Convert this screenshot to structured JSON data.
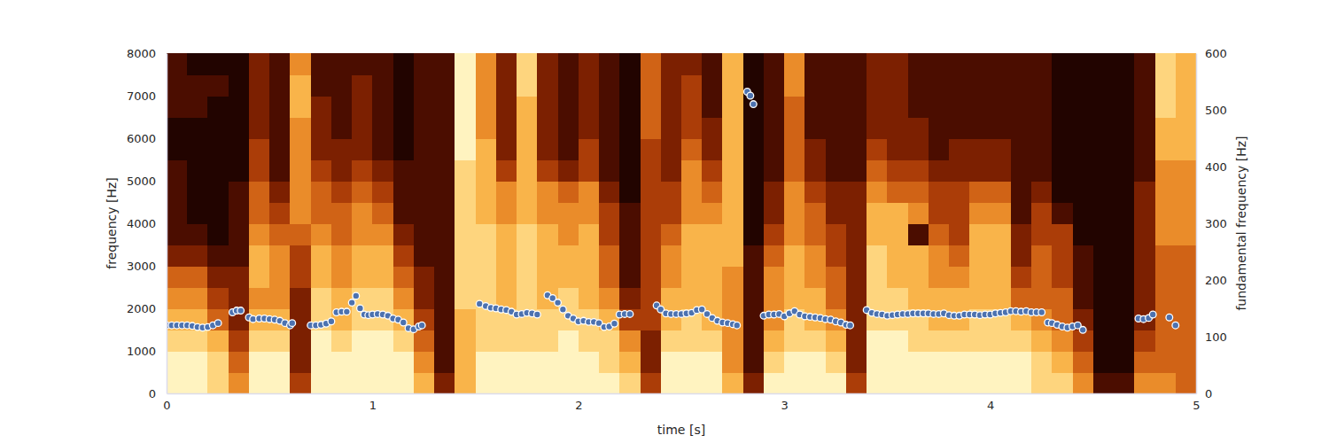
{
  "chart_data": {
    "type": "heatmap",
    "x_label": "time [s]",
    "y_label": "frequency [Hz]",
    "y2_label": "fundamental frequency [Hz]",
    "xlim": [
      0,
      5
    ],
    "xticks": [
      0,
      1,
      2,
      3,
      4,
      5
    ],
    "ylim": [
      0,
      8000
    ],
    "yticks": [
      0,
      1000,
      2000,
      3000,
      4000,
      5000,
      6000,
      7000,
      8000
    ],
    "y2lim": [
      0,
      600
    ],
    "y2ticks": [
      0,
      100,
      200,
      300,
      400,
      500,
      600
    ],
    "grid": false,
    "time_bins": [
      0,
      0.1,
      0.2,
      0.3,
      0.4,
      0.5,
      0.6,
      0.7,
      0.8,
      0.9,
      1,
      1.1,
      1.2,
      1.3,
      1.4,
      1.5,
      1.6,
      1.7,
      1.8,
      1.9,
      2,
      2.1,
      2.2,
      2.3,
      2.4,
      2.5,
      2.6,
      2.7,
      2.8,
      2.9,
      3,
      3.1,
      3.2,
      3.3,
      3.4,
      3.5,
      3.6,
      3.7,
      3.8,
      3.9,
      4,
      4.1,
      4.2,
      4.3,
      4.4,
      4.5,
      4.6,
      4.7,
      4.8,
      4.9,
      5
    ],
    "freq_bins": [
      0,
      500,
      1000,
      1500,
      2000,
      2500,
      3000,
      3500,
      4000,
      4500,
      5000,
      5500,
      6000,
      6500,
      7000,
      7500,
      8000
    ],
    "zlim": [
      0,
      9
    ],
    "z": [
      [
        9,
        9,
        8,
        7,
        6,
        5,
        3,
        2,
        2,
        2,
        2,
        1,
        1,
        2,
        2,
        2
      ],
      [
        9,
        9,
        8,
        7,
        6,
        5,
        3,
        2,
        1,
        1,
        1,
        1,
        1,
        2,
        2,
        1
      ],
      [
        8,
        8,
        7,
        5,
        4,
        3,
        2,
        1,
        1,
        1,
        1,
        1,
        1,
        1,
        2,
        1
      ],
      [
        6,
        5,
        4,
        3,
        3,
        3,
        2,
        2,
        2,
        2,
        1,
        1,
        1,
        1,
        1,
        1
      ],
      [
        9,
        9,
        8,
        7,
        6,
        7,
        7,
        6,
        5,
        5,
        4,
        4,
        3,
        3,
        3,
        3
      ],
      [
        9,
        9,
        8,
        7,
        6,
        6,
        6,
        5,
        4,
        3,
        2,
        2,
        2,
        2,
        2,
        2
      ],
      [
        4,
        3,
        3,
        3,
        3,
        4,
        4,
        5,
        6,
        6,
        6,
        6,
        6,
        7,
        7,
        6
      ],
      [
        9,
        9,
        9,
        8,
        8,
        7,
        7,
        6,
        5,
        5,
        4,
        3,
        3,
        3,
        2,
        2
      ],
      [
        9,
        9,
        8,
        7,
        7,
        6,
        6,
        5,
        5,
        4,
        3,
        3,
        2,
        2,
        2,
        2
      ],
      [
        9,
        9,
        9,
        8,
        8,
        7,
        7,
        6,
        6,
        5,
        4,
        3,
        3,
        3,
        3,
        2
      ],
      [
        9,
        9,
        9,
        8,
        8,
        7,
        7,
        6,
        5,
        4,
        3,
        2,
        2,
        2,
        2,
        2
      ],
      [
        9,
        9,
        8,
        7,
        6,
        5,
        4,
        3,
        2,
        2,
        2,
        1,
        1,
        1,
        1,
        1
      ],
      [
        7,
        6,
        5,
        4,
        3,
        3,
        2,
        2,
        2,
        2,
        2,
        2,
        2,
        2,
        2,
        2
      ],
      [
        3,
        2,
        2,
        2,
        2,
        2,
        2,
        2,
        2,
        2,
        2,
        2,
        2,
        2,
        2,
        2
      ],
      [
        7,
        7,
        7,
        7,
        8,
        8,
        8,
        8,
        8,
        8,
        8,
        9,
        9,
        9,
        9,
        9
      ],
      [
        9,
        9,
        8,
        8,
        8,
        8,
        8,
        8,
        7,
        7,
        7,
        7,
        6,
        6,
        6,
        6
      ],
      [
        9,
        9,
        8,
        8,
        7,
        7,
        7,
        7,
        6,
        6,
        4,
        3,
        3,
        3,
        3,
        3
      ],
      [
        9,
        9,
        8,
        8,
        8,
        8,
        8,
        8,
        7,
        7,
        7,
        7,
        7,
        7,
        8,
        8
      ],
      [
        9,
        9,
        8,
        8,
        7,
        7,
        7,
        7,
        6,
        6,
        4,
        3,
        3,
        3,
        3,
        3
      ],
      [
        9,
        9,
        9,
        8,
        8,
        7,
        7,
        6,
        6,
        5,
        3,
        2,
        2,
        2,
        2,
        2
      ],
      [
        9,
        9,
        8,
        8,
        7,
        7,
        7,
        7,
        6,
        6,
        4,
        4,
        3,
        3,
        3,
        3
      ],
      [
        9,
        8,
        8,
        7,
        6,
        5,
        5,
        4,
        4,
        3,
        2,
        2,
        2,
        2,
        2,
        2
      ],
      [
        8,
        7,
        6,
        4,
        3,
        2,
        2,
        2,
        2,
        1,
        1,
        1,
        1,
        1,
        1,
        1
      ],
      [
        4,
        3,
        3,
        4,
        4,
        4,
        4,
        4,
        4,
        4,
        4,
        4,
        5,
        5,
        5,
        5
      ],
      [
        9,
        9,
        8,
        7,
        7,
        6,
        6,
        5,
        4,
        4,
        3,
        3,
        3,
        3,
        3,
        3
      ],
      [
        9,
        9,
        8,
        8,
        7,
        7,
        7,
        7,
        6,
        6,
        6,
        5,
        4,
        4,
        4,
        3
      ],
      [
        9,
        9,
        8,
        7,
        7,
        7,
        7,
        7,
        6,
        5,
        4,
        3,
        3,
        2,
        2,
        2
      ],
      [
        7,
        6,
        6,
        6,
        6,
        6,
        7,
        7,
        7,
        7,
        7,
        7,
        7,
        7,
        7,
        7
      ],
      [
        3,
        2,
        2,
        2,
        2,
        2,
        2,
        1,
        1,
        1,
        1,
        1,
        1,
        1,
        1,
        1
      ],
      [
        9,
        8,
        7,
        6,
        6,
        6,
        5,
        4,
        3,
        3,
        2,
        2,
        2,
        2,
        2,
        2
      ],
      [
        9,
        9,
        8,
        8,
        7,
        7,
        7,
        6,
        6,
        6,
        5,
        5,
        5,
        5,
        6,
        6
      ],
      [
        9,
        9,
        8,
        7,
        7,
        6,
        6,
        5,
        5,
        4,
        3,
        3,
        2,
        2,
        2,
        2
      ],
      [
        9,
        8,
        7,
        6,
        5,
        5,
        4,
        4,
        3,
        3,
        2,
        2,
        2,
        2,
        2,
        2
      ],
      [
        4,
        3,
        3,
        3,
        3,
        3,
        3,
        3,
        3,
        3,
        2,
        2,
        2,
        2,
        2,
        2
      ],
      [
        9,
        9,
        9,
        8,
        8,
        8,
        8,
        7,
        7,
        6,
        5,
        4,
        3,
        3,
        3,
        3
      ],
      [
        9,
        9,
        9,
        8,
        8,
        7,
        7,
        7,
        7,
        5,
        4,
        3,
        3,
        3,
        3,
        3
      ],
      [
        9,
        9,
        8,
        8,
        7,
        7,
        7,
        2,
        6,
        5,
        4,
        3,
        3,
        2,
        2,
        2
      ],
      [
        9,
        9,
        8,
        7,
        7,
        6,
        6,
        5,
        4,
        4,
        3,
        2,
        2,
        2,
        2,
        2
      ],
      [
        9,
        9,
        8,
        7,
        7,
        6,
        5,
        4,
        4,
        4,
        3,
        3,
        2,
        2,
        2,
        2
      ],
      [
        9,
        9,
        8,
        8,
        7,
        7,
        7,
        7,
        6,
        5,
        3,
        3,
        2,
        2,
        2,
        2
      ],
      [
        9,
        9,
        8,
        8,
        7,
        7,
        7,
        7,
        6,
        5,
        3,
        3,
        2,
        2,
        2,
        2
      ],
      [
        9,
        9,
        8,
        7,
        5,
        4,
        3,
        3,
        2,
        2,
        2,
        2,
        2,
        2,
        2,
        2
      ],
      [
        8,
        8,
        7,
        6,
        5,
        5,
        5,
        4,
        4,
        3,
        2,
        2,
        2,
        2,
        2,
        2
      ],
      [
        8,
        7,
        6,
        5,
        5,
        4,
        4,
        4,
        2,
        1,
        1,
        1,
        1,
        1,
        1,
        1
      ],
      [
        6,
        5,
        4,
        3,
        2,
        2,
        2,
        1,
        1,
        1,
        1,
        1,
        1,
        1,
        1,
        1
      ],
      [
        2,
        1,
        1,
        1,
        1,
        1,
        1,
        1,
        1,
        1,
        1,
        1,
        1,
        1,
        1,
        1
      ],
      [
        2,
        1,
        1,
        1,
        1,
        1,
        1,
        1,
        1,
        1,
        1,
        1,
        1,
        1,
        1,
        1
      ],
      [
        6,
        5,
        4,
        3,
        3,
        3,
        3,
        3,
        3,
        3,
        2,
        2,
        2,
        2,
        2,
        2
      ],
      [
        6,
        5,
        5,
        5,
        5,
        5,
        5,
        6,
        6,
        6,
        6,
        7,
        7,
        8,
        8,
        8
      ],
      [
        5,
        5,
        5,
        5,
        5,
        5,
        5,
        6,
        6,
        6,
        6,
        7,
        7,
        7,
        7,
        7
      ]
    ],
    "series": [
      {
        "type": "scatter",
        "axis": "y2",
        "color": "#4c72b0",
        "marker": "circle",
        "x": [
          0,
          0.025,
          0.05,
          0.075,
          0.1,
          0.125,
          0.15,
          0.175,
          0.2,
          0.225,
          0.25,
          0.32,
          0.34,
          0.36,
          0.4,
          0.42,
          0.45,
          0.475,
          0.5,
          0.525,
          0.55,
          0.575,
          0.6,
          0.61,
          0.7,
          0.725,
          0.75,
          0.775,
          0.8,
          0.825,
          0.85,
          0.875,
          0.9,
          0.92,
          0.94,
          0.96,
          0.98,
          1.0,
          1.025,
          1.05,
          1.075,
          1.1,
          1.125,
          1.15,
          1.175,
          1.2,
          1.225,
          1.24,
          1.52,
          1.55,
          1.575,
          1.6,
          1.625,
          1.65,
          1.675,
          1.7,
          1.725,
          1.75,
          1.775,
          1.8,
          1.85,
          1.875,
          1.9,
          1.925,
          1.95,
          1.975,
          2.0,
          2.025,
          2.05,
          2.075,
          2.1,
          2.125,
          2.15,
          2.175,
          2.2,
          2.225,
          2.25,
          2.38,
          2.4,
          2.425,
          2.45,
          2.475,
          2.5,
          2.525,
          2.55,
          2.575,
          2.6,
          2.625,
          2.65,
          2.675,
          2.7,
          2.725,
          2.75,
          2.77,
          2.82,
          2.835,
          2.85,
          2.9,
          2.925,
          2.95,
          2.975,
          3.0,
          3.025,
          3.05,
          3.075,
          3.1,
          3.125,
          3.15,
          3.175,
          3.2,
          3.225,
          3.25,
          3.275,
          3.3,
          3.32,
          3.4,
          3.425,
          3.45,
          3.475,
          3.5,
          3.525,
          3.55,
          3.575,
          3.6,
          3.625,
          3.65,
          3.675,
          3.7,
          3.725,
          3.75,
          3.775,
          3.8,
          3.825,
          3.85,
          3.875,
          3.9,
          3.925,
          3.95,
          3.975,
          4.0,
          4.025,
          4.05,
          4.075,
          4.1,
          4.125,
          4.15,
          4.175,
          4.2,
          4.225,
          4.25,
          4.28,
          4.3,
          4.325,
          4.35,
          4.375,
          4.4,
          4.425,
          4.45,
          4.72,
          4.745,
          4.77,
          4.79,
          4.87,
          4.9
        ],
        "values": [
          120,
          120,
          120,
          120,
          120,
          119,
          117,
          116,
          117,
          120,
          124,
          143,
          146,
          146,
          134,
          131,
          132,
          132,
          131,
          130,
          128,
          124,
          120,
          124,
          120,
          120,
          121,
          123,
          127,
          143,
          144,
          144,
          160,
          172,
          150,
          139,
          138,
          139,
          140,
          139,
          137,
          132,
          130,
          125,
          115,
          113,
          118,
          120,
          158,
          154,
          151,
          150,
          148,
          147,
          144,
          139,
          140,
          142,
          141,
          139,
          173,
          168,
          160,
          148,
          137,
          132,
          127,
          128,
          126,
          126,
          124,
          117,
          118,
          123,
          139,
          140,
          140,
          155,
          148,
          141,
          140,
          140,
          140,
          141,
          142,
          147,
          148,
          140,
          133,
          128,
          125,
          124,
          122,
          120,
          532,
          525,
          510,
          137,
          139,
          139,
          140,
          136,
          141,
          145,
          139,
          136,
          135,
          134,
          133,
          131,
          130,
          127,
          125,
          121,
          120,
          147,
          142,
          140,
          139,
          137,
          138,
          139,
          140,
          140,
          141,
          141,
          141,
          141,
          140,
          140,
          141,
          138,
          137,
          137,
          139,
          139,
          139,
          138,
          139,
          139,
          141,
          142,
          143,
          145,
          145,
          144,
          145,
          143,
          143,
          143,
          125,
          124,
          121,
          118,
          116,
          118,
          120,
          112,
          132,
          131,
          133,
          139,
          134,
          120
        ]
      }
    ]
  }
}
